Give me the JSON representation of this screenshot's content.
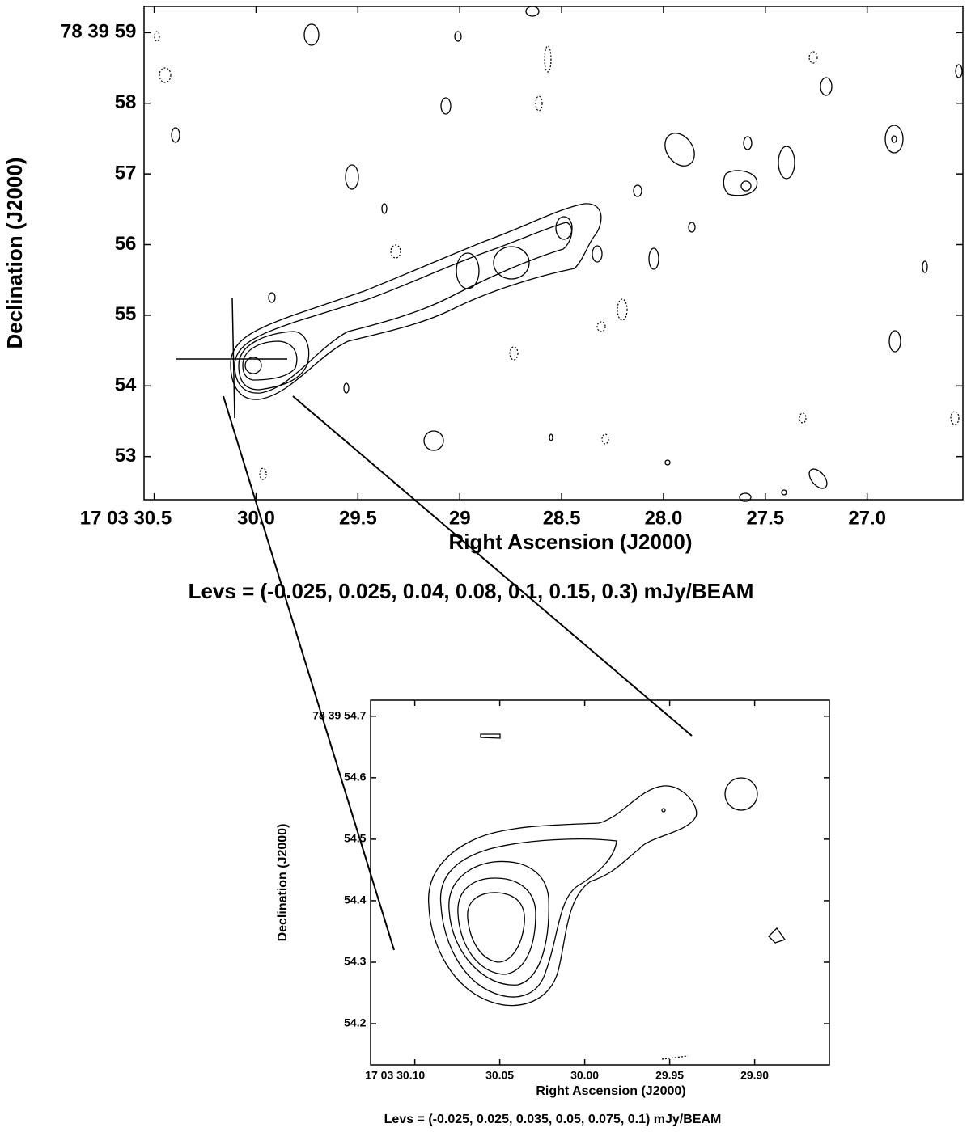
{
  "chart_data": [
    {
      "type": "contour",
      "xlabel": "Right Ascension (J2000)",
      "ylabel": "Declination (J2000)",
      "caption": "Levs =  (-0.025, 0.025, 0.04, 0.08, 0.1, 0.15, 0.3) mJy/BEAM",
      "xlim": [
        30.55,
        26.53
      ],
      "ylim": [
        52.39,
        59.37
      ],
      "xticks": [
        {
          "value": 30.5,
          "label": "17 03 30.5"
        },
        {
          "value": 30,
          "label": "30.0"
        },
        29.5,
        29,
        {
          "value": 28.5,
          "label": "28.5"
        },
        {
          "value": 28,
          "label": "28.0"
        },
        27.5,
        {
          "value": 27,
          "label": "27.0"
        }
      ],
      "yticks": [
        {
          "value": 59,
          "label": "78 39 59"
        },
        58,
        57,
        56,
        55,
        54,
        53
      ]
    },
    {
      "type": "contour",
      "xlabel": "Right Ascension (J2000)",
      "ylabel": "Declination (J2000)",
      "caption": "Levs = (-0.025, 0.025, 0.035, 0.05, 0.075, 0.1) mJy/BEAM",
      "xlim": [
        30.126,
        29.856
      ],
      "ylim": [
        54.133,
        54.726
      ],
      "xticks": [
        {
          "value": 30.1,
          "label": "17 03 30.10"
        },
        30.05,
        {
          "value": 30,
          "label": "30.00"
        },
        29.95,
        {
          "value": 29.9,
          "label": "29.90"
        }
      ],
      "yticks": [
        {
          "value": 54.7,
          "label": "78 39 54.7"
        },
        54.6,
        54.5,
        54.4,
        54.3,
        54.2
      ]
    }
  ]
}
